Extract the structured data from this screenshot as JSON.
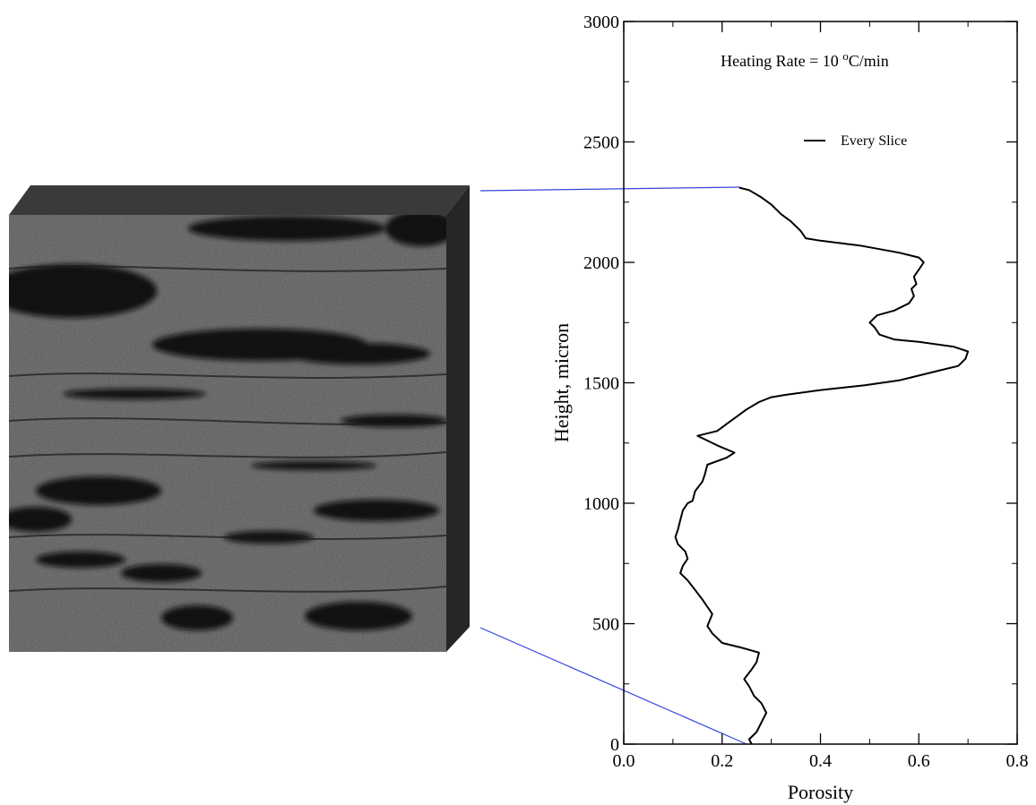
{
  "chart_data": {
    "type": "line",
    "title": "",
    "annotation": {
      "prefix": "Heating Rate = 10 ",
      "superscript": "o",
      "suffix": "C/min"
    },
    "xlabel": "Porosity",
    "ylabel": "Height, micron",
    "xlim": [
      0.0,
      0.8
    ],
    "ylim": [
      0,
      3000
    ],
    "x_ticks": [
      0.0,
      0.2,
      0.4,
      0.6,
      0.8
    ],
    "x_tick_labels": [
      "0.0",
      "0.2",
      "0.4",
      "0.6",
      "0.8"
    ],
    "y_ticks": [
      0,
      500,
      1000,
      1500,
      2000,
      2500,
      3000
    ],
    "y_tick_labels": [
      "0",
      "500",
      "1000",
      "1500",
      "2000",
      "2500",
      "3000"
    ],
    "grid": false,
    "legend_position": "top-right",
    "series": [
      {
        "name": "Every Slice",
        "color": "#000000",
        "points": [
          [
            0.26,
            0
          ],
          [
            0.255,
            20
          ],
          [
            0.27,
            50
          ],
          [
            0.28,
            90
          ],
          [
            0.29,
            130
          ],
          [
            0.28,
            170
          ],
          [
            0.265,
            200
          ],
          [
            0.255,
            240
          ],
          [
            0.245,
            270
          ],
          [
            0.26,
            310
          ],
          [
            0.27,
            340
          ],
          [
            0.275,
            380
          ],
          [
            0.24,
            400
          ],
          [
            0.2,
            420
          ],
          [
            0.18,
            460
          ],
          [
            0.17,
            490
          ],
          [
            0.18,
            540
          ],
          [
            0.17,
            570
          ],
          [
            0.16,
            600
          ],
          [
            0.145,
            640
          ],
          [
            0.13,
            680
          ],
          [
            0.115,
            710
          ],
          [
            0.12,
            740
          ],
          [
            0.13,
            770
          ],
          [
            0.125,
            800
          ],
          [
            0.11,
            830
          ],
          [
            0.105,
            860
          ],
          [
            0.11,
            890
          ],
          [
            0.115,
            930
          ],
          [
            0.12,
            970
          ],
          [
            0.13,
            1000
          ],
          [
            0.14,
            1010
          ],
          [
            0.145,
            1050
          ],
          [
            0.16,
            1090
          ],
          [
            0.165,
            1120
          ],
          [
            0.17,
            1160
          ],
          [
            0.21,
            1190
          ],
          [
            0.225,
            1210
          ],
          [
            0.19,
            1240
          ],
          [
            0.16,
            1270
          ],
          [
            0.15,
            1280
          ],
          [
            0.19,
            1300
          ],
          [
            0.21,
            1330
          ],
          [
            0.23,
            1360
          ],
          [
            0.25,
            1390
          ],
          [
            0.275,
            1420
          ],
          [
            0.3,
            1440
          ],
          [
            0.33,
            1450
          ],
          [
            0.4,
            1470
          ],
          [
            0.49,
            1490
          ],
          [
            0.56,
            1510
          ],
          [
            0.64,
            1550
          ],
          [
            0.68,
            1570
          ],
          [
            0.695,
            1600
          ],
          [
            0.7,
            1630
          ],
          [
            0.67,
            1650
          ],
          [
            0.6,
            1670
          ],
          [
            0.55,
            1680
          ],
          [
            0.52,
            1700
          ],
          [
            0.51,
            1730
          ],
          [
            0.5,
            1750
          ],
          [
            0.515,
            1780
          ],
          [
            0.55,
            1800
          ],
          [
            0.58,
            1830
          ],
          [
            0.59,
            1860
          ],
          [
            0.585,
            1890
          ],
          [
            0.595,
            1910
          ],
          [
            0.59,
            1940
          ],
          [
            0.6,
            1970
          ],
          [
            0.61,
            2000
          ],
          [
            0.6,
            2020
          ],
          [
            0.56,
            2040
          ],
          [
            0.48,
            2070
          ],
          [
            0.4,
            2090
          ],
          [
            0.37,
            2100
          ],
          [
            0.36,
            2130
          ],
          [
            0.34,
            2170
          ],
          [
            0.32,
            2200
          ],
          [
            0.3,
            2240
          ],
          [
            0.28,
            2270
          ],
          [
            0.255,
            2300
          ],
          [
            0.235,
            2310
          ]
        ]
      }
    ]
  },
  "colors": {
    "curve": "#000000",
    "connector_lines": "#3344dd",
    "rock_base": "#2e2e2e"
  }
}
